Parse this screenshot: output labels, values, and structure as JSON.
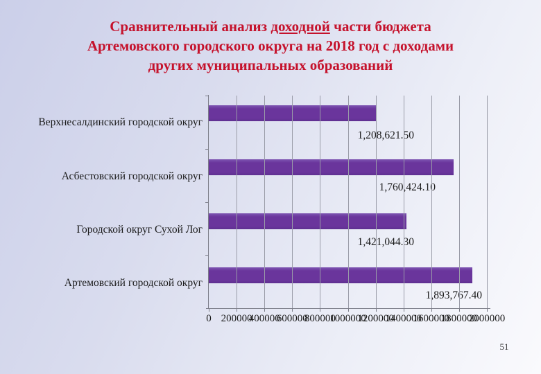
{
  "title": {
    "line1_pre": "Сравнительный анализ ",
    "line1_underline": "доходной",
    "line1_post": " части бюджета",
    "line2": "Артемовского городского округа на 2018 год с доходами",
    "line3": "других муниципальных образований"
  },
  "page_number": "51",
  "colors": {
    "title_red": "#c5122c",
    "bar_purple": "#6a359c",
    "background_top_left": "#cbcfe9",
    "background_bottom_right": "#fafafd",
    "gridline_gray": "#9a9ca8",
    "axis_gray": "#7b7d88",
    "label_black": "#1a1a1a"
  },
  "chart_data": {
    "type": "bar",
    "orientation": "horizontal",
    "title": "",
    "xlabel": "",
    "ylabel": "",
    "categories": [
      "Верхнесалдинский городской округ",
      "Асбестовский городской округ",
      "Городской округ Сухой Лог",
      "Артемовский городской округ"
    ],
    "values": [
      1208621.5,
      1760424.1,
      1421044.3,
      1893767.4
    ],
    "value_labels": [
      "1,208,621.50",
      "1,760,424.10",
      "1,421,044.30",
      "1,893,767.40"
    ],
    "x_ticks": [
      0,
      200000,
      400000,
      600000,
      800000,
      1000000,
      1200000,
      1400000,
      1600000,
      1800000,
      2000000
    ],
    "x_tick_labels": [
      "0",
      "200000",
      "400000",
      "600000",
      "800000",
      "1000000",
      "1200000",
      "1400000",
      "1600000",
      "1800000",
      "2000000"
    ],
    "xlim": [
      0,
      2000000
    ],
    "gridlines": "vertical",
    "legend": "none",
    "bar_color": "#6a359c"
  }
}
